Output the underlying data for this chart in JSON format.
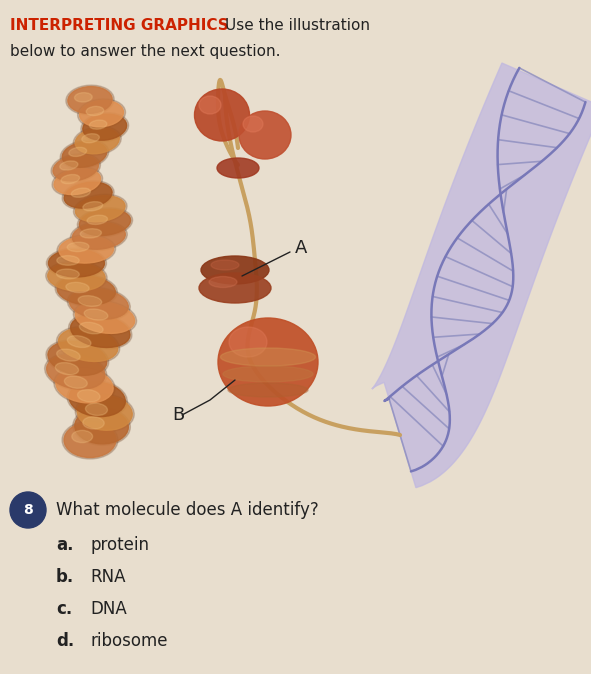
{
  "background_color": "#e8dece",
  "title_bold": "INTERPRETING GRAPHICS",
  "title_bold_color": "#cc2200",
  "title_normal_color": "#222222",
  "question_number": "8",
  "question_number_bg": "#2a3a6a",
  "question_number_color": "#ffffff",
  "question_text": "What molecule does A identify?",
  "choices": [
    {
      "letter": "a.",
      "text": "protein",
      "bold": true
    },
    {
      "letter": "b.",
      "text": "RNA",
      "bold": false
    },
    {
      "letter": "c.",
      "text": "DNA",
      "bold": false
    },
    {
      "letter": "d.",
      "text": "ribosome",
      "bold": false
    }
  ],
  "dna_color_bg": "#c0b8e0",
  "dna_strand_color": "#7878b8",
  "dna_rung_color": "#9090c0",
  "mrna_color": "#c8a060",
  "protein_colors": [
    "#c87840",
    "#b86830",
    "#d08840",
    "#a85820",
    "#e09050"
  ],
  "ribosome_top_color": "#a04828",
  "ribosome_mid_color": "#c07838",
  "ribosome_bot_color": "#c85030",
  "label_color": "#222222"
}
